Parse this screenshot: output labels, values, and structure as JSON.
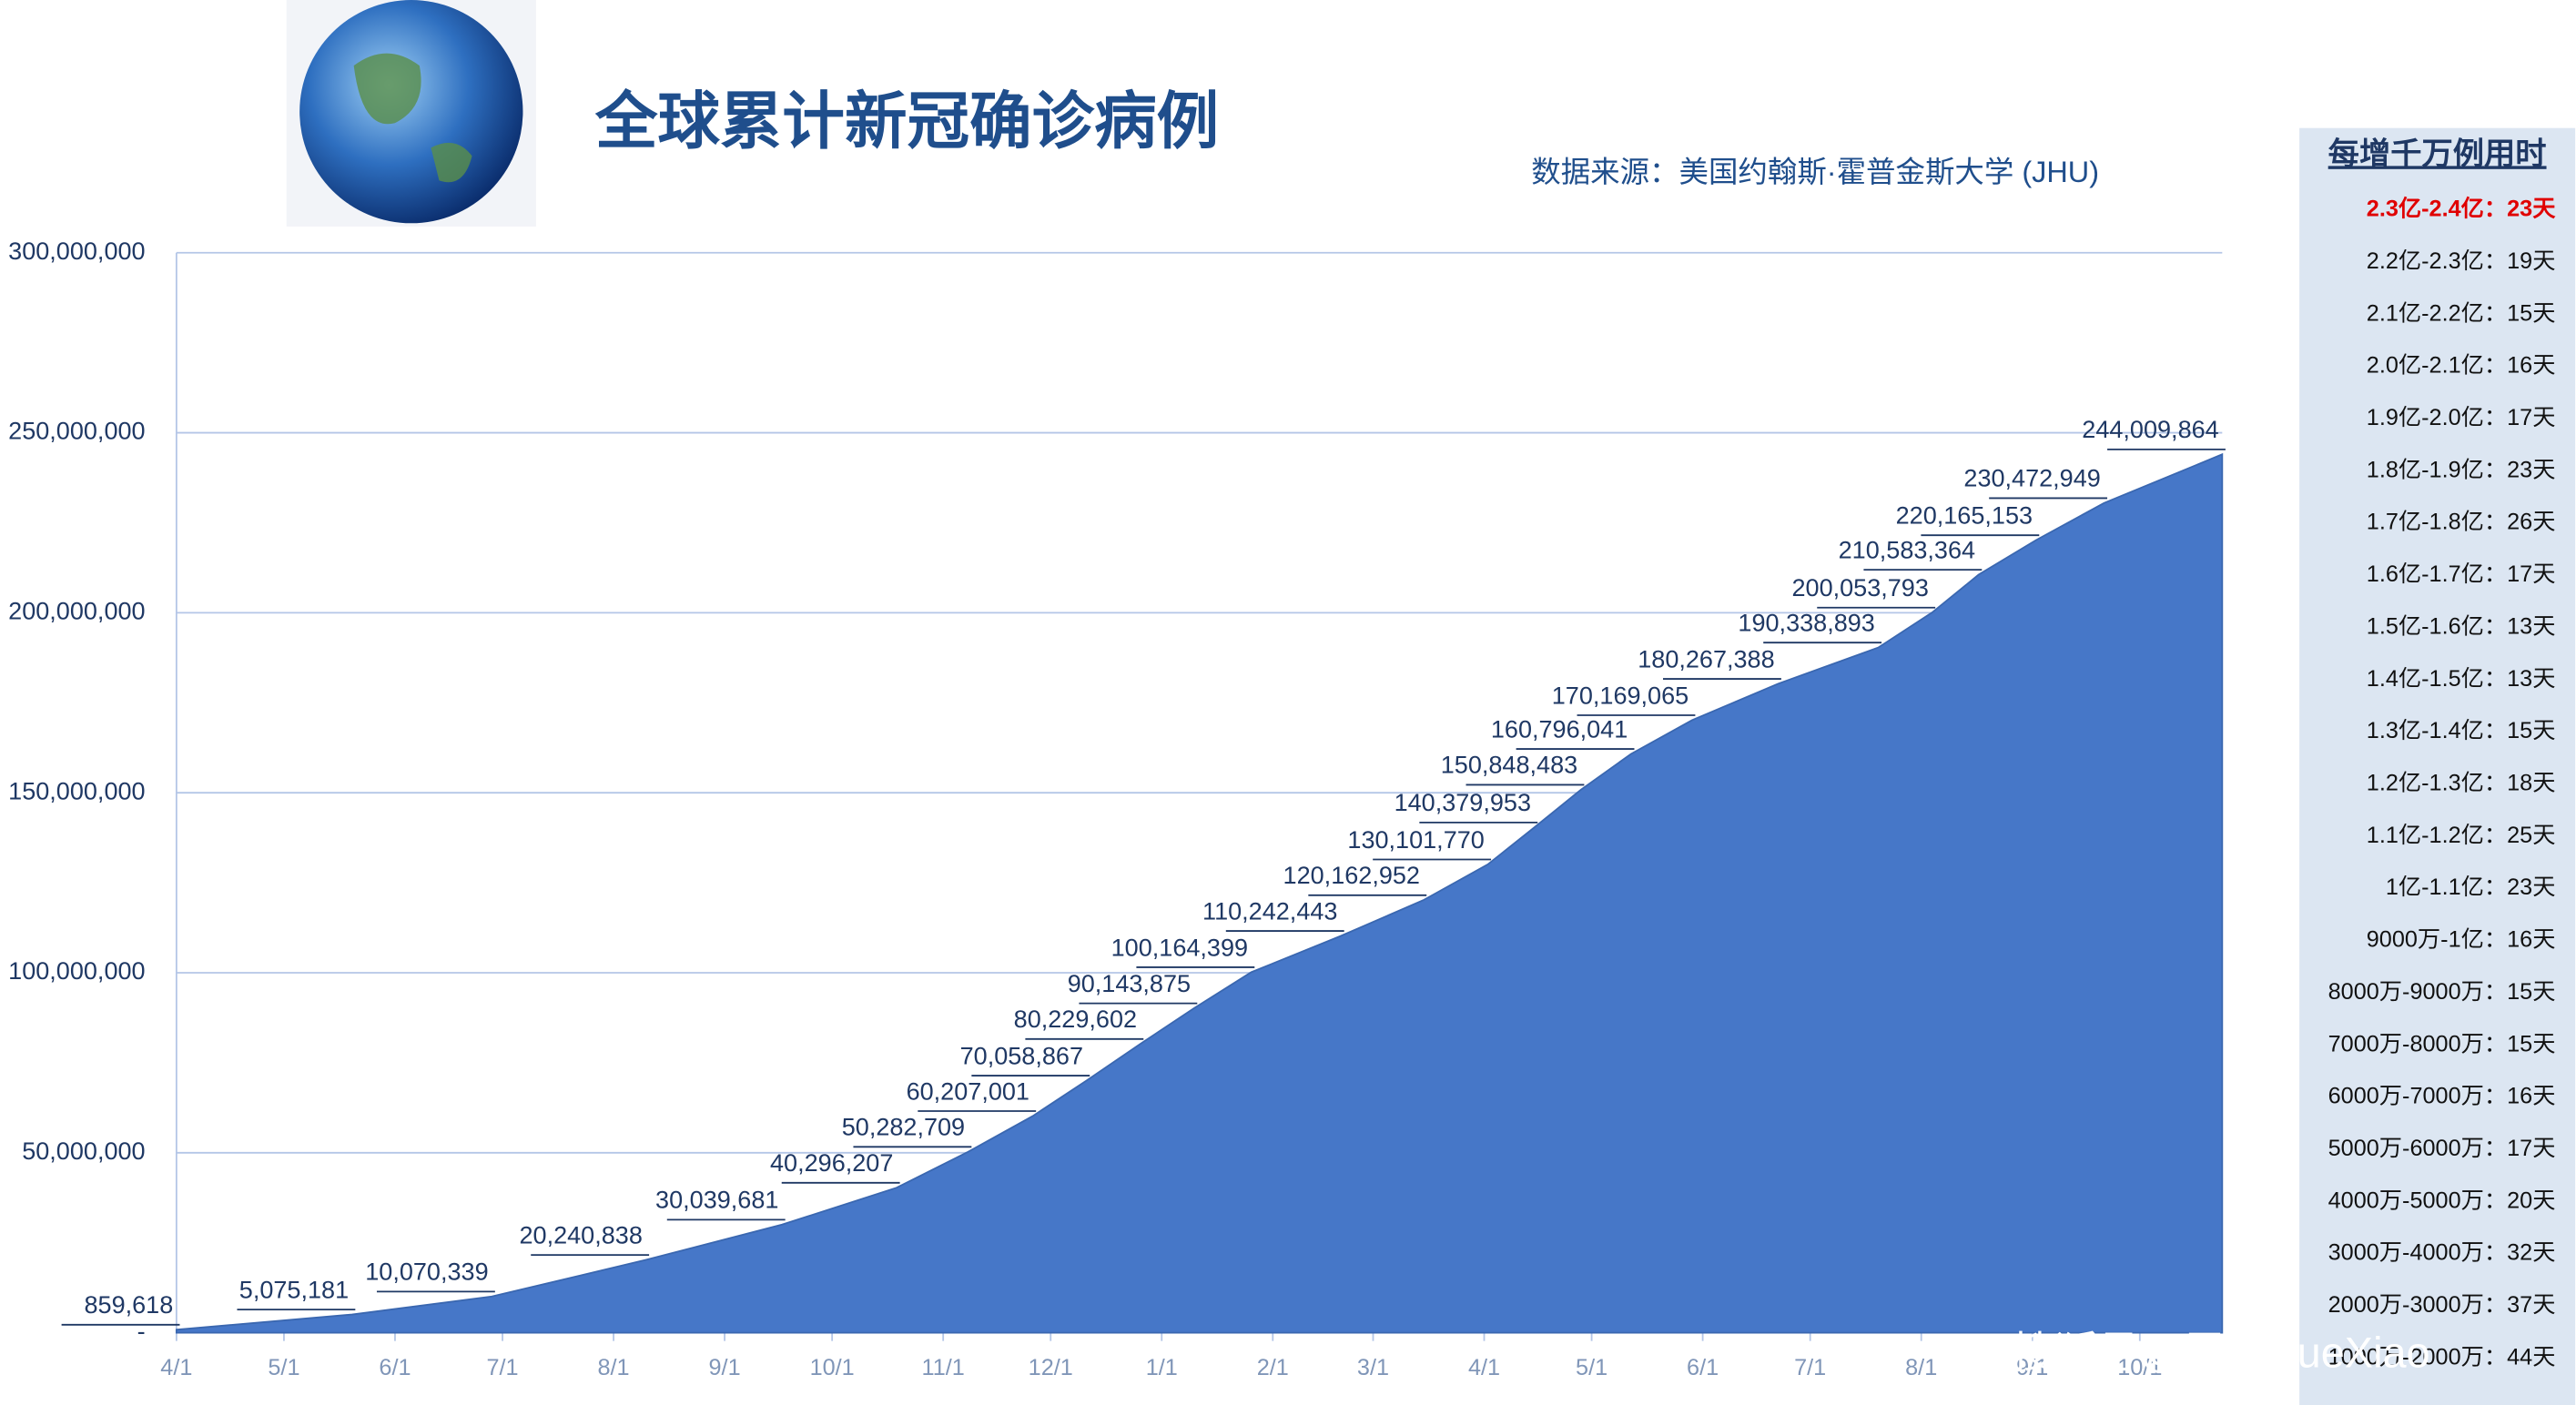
{
  "chart_data": {
    "type": "area",
    "title": "全球累计新冠确诊病例",
    "subtitle": "数据来源：美国约翰斯·霍普金斯大学 (JHU)",
    "color": "#4677c8",
    "grid": true,
    "x": [
      0,
      49,
      88,
      131,
      169,
      201,
      221,
      239,
      254,
      269,
      284,
      300,
      325,
      348,
      366,
      379,
      392,
      406,
      423,
      447,
      475,
      490,
      503,
      519,
      538,
      571
    ],
    "values": [
      859618,
      5075181,
      10070339,
      20240838,
      30039681,
      40296207,
      50282709,
      60207001,
      70058867,
      80229602,
      90143875,
      100164399,
      110242443,
      120162952,
      130101770,
      140379953,
      150848483,
      160796041,
      170169065,
      180267388,
      190338893,
      200053793,
      210583364,
      220165153,
      230472949,
      244009864
    ],
    "value_labels": [
      "859,618",
      "5,075,181",
      "10,070,339",
      "20,240,838",
      "30,039,681",
      "40,296,207",
      "50,282,709",
      "60,207,001",
      "70,058,867",
      "80,229,602",
      "90,143,875",
      "100,164,399",
      "110,242,443",
      "120,162,952",
      "130,101,770",
      "140,379,953",
      "150,848,483",
      "160,796,041",
      "170,169,065",
      "180,267,388",
      "190,338,893",
      "200,053,793",
      "210,583,364",
      "220,165,153",
      "230,472,949",
      "244,009,864"
    ],
    "xlim": [
      0,
      571
    ],
    "xticks": [
      {
        "value": 0,
        "label": "4/1"
      },
      {
        "value": 30,
        "label": "5/1"
      },
      {
        "value": 61,
        "label": "6/1"
      },
      {
        "value": 91,
        "label": "7/1"
      },
      {
        "value": 122,
        "label": "8/1"
      },
      {
        "value": 153,
        "label": "9/1"
      },
      {
        "value": 183,
        "label": "10/1"
      },
      {
        "value": 214,
        "label": "11/1"
      },
      {
        "value": 244,
        "label": "12/1"
      },
      {
        "value": 275,
        "label": "1/1"
      },
      {
        "value": 306,
        "label": "2/1"
      },
      {
        "value": 334,
        "label": "3/1"
      },
      {
        "value": 365,
        "label": "4/1"
      },
      {
        "value": 395,
        "label": "5/1"
      },
      {
        "value": 426,
        "label": "6/1"
      },
      {
        "value": 456,
        "label": "7/1"
      },
      {
        "value": 487,
        "label": "8/1"
      },
      {
        "value": 518,
        "label": "9/1"
      },
      {
        "value": 548,
        "label": "10/1"
      }
    ],
    "ylim": [
      0,
      300000000
    ],
    "yticks": [
      {
        "value": 0,
        "label": "-"
      },
      {
        "value": 50000000,
        "label": "50,000,000"
      },
      {
        "value": 100000000,
        "label": "100,000,000"
      },
      {
        "value": 150000000,
        "label": "150,000,000"
      },
      {
        "value": 200000000,
        "label": "200,000,000"
      },
      {
        "value": 250000000,
        "label": "250,000,000"
      },
      {
        "value": 300000000,
        "label": "300,000,000"
      }
    ]
  },
  "side_table": {
    "title": "每增千万例用时",
    "rows": [
      "2.3亿-2.4亿：23天",
      "2.2亿-2.3亿：19天",
      "2.1亿-2.2亿：15天",
      "2.0亿-2.1亿：16天",
      "1.9亿-2.0亿：17天",
      "1.8亿-1.9亿：23天",
      "1.7亿-1.8亿：26天",
      "1.6亿-1.7亿：17天",
      "1.5亿-1.6亿：13天",
      "1.4亿-1.5亿：13天",
      "1.3亿-1.4亿：15天",
      "1.2亿-1.3亿：18天",
      "1.1亿-1.2亿：25天",
      "1亿-1.1亿：23天",
      "9000万-1亿：16天",
      "8000万-9000万：15天",
      "7000万-8000万：15天",
      "6000万-7000万：16天",
      "5000万-6000万：17天",
      "4000万-5000万：20天",
      "3000万-4000万：32天",
      "2000万-3000万：37天",
      "1000万-2000万：44天"
    ]
  },
  "watermark": "搜狐号@雪鸮XueXiao"
}
